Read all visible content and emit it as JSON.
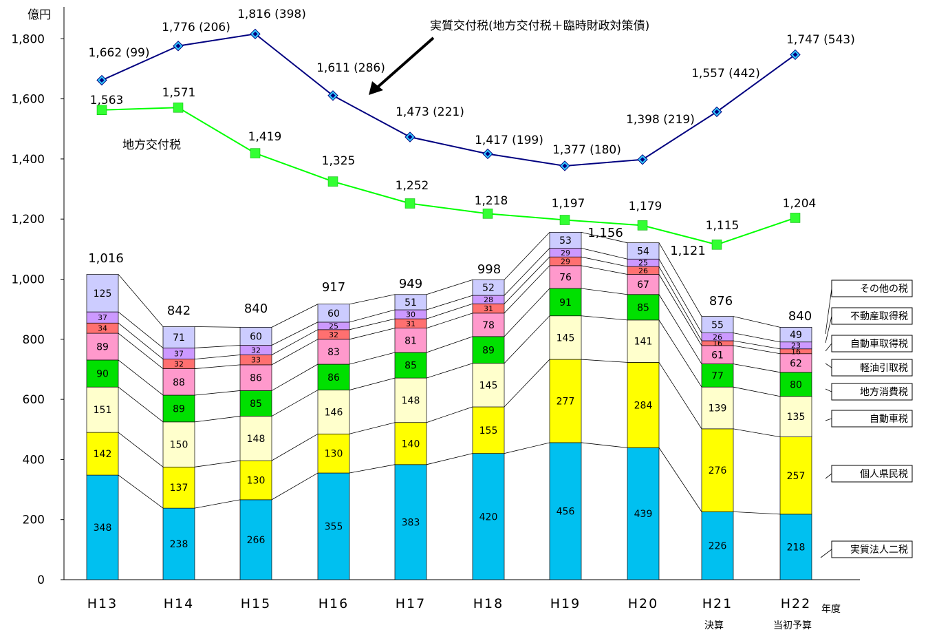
{
  "chart_data": {
    "type": "bar",
    "stacked": true,
    "y_unit": "億円",
    "ylim": [
      0,
      1900
    ],
    "yticks": [
      0,
      200,
      400,
      600,
      800,
      1000,
      1200,
      1400,
      1600,
      1800
    ],
    "ytick_labels": [
      "0",
      "200",
      "400",
      "600",
      "800",
      "1,000",
      "1,200",
      "1,400",
      "1,600",
      "1,800"
    ],
    "x_unit": "年度",
    "categories": [
      "H13",
      "H14",
      "H15",
      "H16",
      "H17",
      "H18",
      "H19",
      "H20",
      "H21",
      "H22"
    ],
    "category_notes": [
      "",
      "",
      "",
      "",
      "",
      "",
      "",
      "",
      "決算",
      "当初予算"
    ],
    "series": [
      {
        "name": "実質法人二税",
        "color": "#00c0f0",
        "values": [
          348,
          238,
          266,
          355,
          383,
          420,
          456,
          439,
          226,
          218
        ]
      },
      {
        "name": "個人県民税",
        "color": "#ffff00",
        "values": [
          142,
          137,
          130,
          130,
          140,
          155,
          277,
          284,
          276,
          257
        ]
      },
      {
        "name": "自動車税",
        "color": "#ffffcc",
        "values": [
          151,
          150,
          148,
          146,
          148,
          145,
          145,
          141,
          139,
          135
        ]
      },
      {
        "name": "地方消費税",
        "color": "#00e000",
        "values": [
          90,
          89,
          85,
          86,
          85,
          89,
          91,
          85,
          77,
          80
        ]
      },
      {
        "name": "軽油引取税",
        "color": "#ff99cc",
        "values": [
          89,
          88,
          86,
          83,
          81,
          78,
          76,
          67,
          61,
          62
        ]
      },
      {
        "name": "自動車取得税",
        "color": "#ff7070",
        "values": [
          34,
          32,
          33,
          32,
          31,
          31,
          29,
          26,
          16,
          16
        ]
      },
      {
        "name": "不動産取得税",
        "color": "#cc99ff",
        "values": [
          37,
          37,
          32,
          25,
          30,
          28,
          29,
          25,
          26,
          23
        ]
      },
      {
        "name": "その他の税",
        "color": "#ccccff",
        "values": [
          125,
          71,
          60,
          60,
          51,
          52,
          53,
          54,
          55,
          49
        ]
      }
    ],
    "totals": [
      "1,016",
      "842",
      "840",
      "917",
      "949",
      "998",
      "1,156",
      "1,121",
      "876",
      "840"
    ],
    "lines": [
      {
        "name": "実質交付税(地方交付税＋臨時財政対策債)",
        "color": "#000080",
        "marker_color": "#33ccff",
        "values": [
          1662,
          1776,
          1816,
          1611,
          1473,
          1417,
          1377,
          1398,
          1557,
          1747
        ],
        "labels": [
          "1,662 (99)",
          "1,776 (206)",
          "1,816 (398)",
          "1,611 (286)",
          "1,473 (221)",
          "1,417 (199)",
          "1,377 (180)",
          "1,398 (219)",
          "1,557 (442)",
          "1,747 (543)"
        ]
      },
      {
        "name": "地方交付税",
        "color": "#00ff00",
        "marker_color": "#33ff33",
        "values": [
          1563,
          1571,
          1419,
          1325,
          1252,
          1218,
          1197,
          1179,
          1115,
          1204
        ],
        "labels": [
          "1,563",
          "1,571",
          "1,419",
          "1,325",
          "1,252",
          "1,218",
          "1,197",
          "1,179",
          "1,115",
          "1,204"
        ]
      }
    ],
    "legend_placement": "right"
  }
}
